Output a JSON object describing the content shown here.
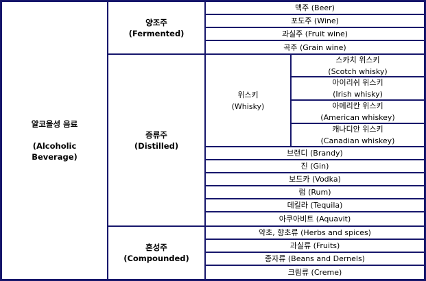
{
  "table": {
    "root": {
      "title": "알코올성 음료",
      "english_line1": "(Alcoholic",
      "english_line2": "Beverage)"
    },
    "groups": [
      {
        "name": "양조주",
        "english": "(Fermented)",
        "items": [
          "맥주 (Beer)",
          "포도주 (Wine)",
          "과실주 (Fruit wine)",
          "곡주 (Grain wine)"
        ]
      },
      {
        "name": "증류주",
        "english": "(Distilled)",
        "whisky": {
          "label": "위스키",
          "english": "(Whisky)",
          "items": [
            {
              "ko": "스카치 위스키",
              "en": "(Scotch whisky)"
            },
            {
              "ko": "아이리쉬 위스키",
              "en": "(Irish whisky)"
            },
            {
              "ko": "아메리칸 위스키",
              "en": "(American whiskey)"
            },
            {
              "ko": "캐나디안 위스키",
              "en": "(Canadian whiskey)"
            }
          ]
        },
        "items": [
          "브랜디 (Brandy)",
          "진 (Gin)",
          "보드카 (Vodka)",
          "럼 (Rum)",
          "데킬라 (Tequila)",
          "아쿠아비트 (Aquavit)"
        ]
      },
      {
        "name": "혼성주",
        "english": "(Compounded)",
        "items": [
          "약초, 향초류 (Herbs and spices)",
          "과실류 (Fruits)",
          "종자류 (Beans and Dernels)",
          "크림류 (Creme)"
        ]
      }
    ]
  }
}
